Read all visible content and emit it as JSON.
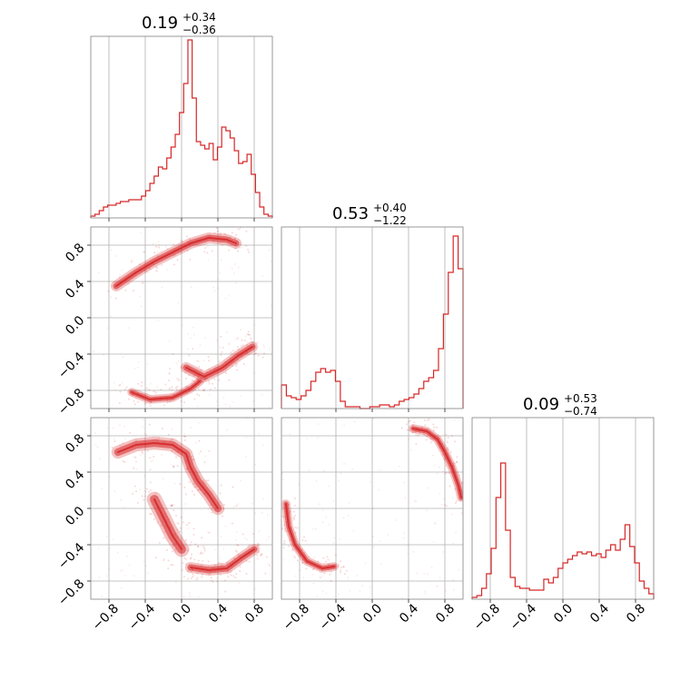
{
  "chart_data": {
    "type": "corner",
    "color": "#d62728",
    "grid": true,
    "x_ticks": [
      "−0.8",
      "−0.4",
      "0.0",
      "0.4",
      "0.8"
    ],
    "y_ticks": [
      "0.8",
      "0.4",
      "0.0",
      "−0.4",
      "−0.8"
    ],
    "tick_values": [
      -0.8,
      -0.4,
      0.0,
      0.4,
      0.8
    ],
    "range": [
      -1.0,
      1.0
    ],
    "parameters": [
      {
        "median": "0.19",
        "plus": "+0.34",
        "minus": "−0.36"
      },
      {
        "median": "0.53",
        "plus": "+0.40",
        "minus": "−1.22"
      },
      {
        "median": "0.09",
        "plus": "+0.53",
        "minus": "−0.74"
      }
    ],
    "histograms": [
      [
        0.01,
        0.02,
        0.04,
        0.06,
        0.07,
        0.07,
        0.08,
        0.09,
        0.09,
        0.1,
        0.1,
        0.1,
        0.12,
        0.15,
        0.19,
        0.23,
        0.28,
        0.27,
        0.33,
        0.39,
        0.46,
        0.58,
        0.74,
        0.98,
        0.66,
        0.42,
        0.4,
        0.38,
        0.41,
        0.32,
        0.39,
        0.5,
        0.48,
        0.44,
        0.37,
        0.3,
        0.31,
        0.35,
        0.24,
        0.14,
        0.06,
        0.02,
        0.01
      ],
      [
        0.13,
        0.07,
        0.06,
        0.05,
        0.07,
        0.1,
        0.15,
        0.2,
        0.22,
        0.2,
        0.21,
        0.15,
        0.04,
        0.01,
        0.01,
        0.01,
        0.0,
        0.0,
        0.01,
        0.01,
        0.02,
        0.02,
        0.01,
        0.02,
        0.04,
        0.05,
        0.06,
        0.08,
        0.11,
        0.15,
        0.17,
        0.21,
        0.33,
        0.52,
        0.75,
        0.95,
        0.77
      ],
      [
        0.01,
        0.02,
        0.06,
        0.14,
        0.28,
        0.56,
        0.75,
        0.38,
        0.12,
        0.07,
        0.06,
        0.06,
        0.05,
        0.05,
        0.05,
        0.11,
        0.09,
        0.12,
        0.17,
        0.2,
        0.22,
        0.24,
        0.26,
        0.25,
        0.26,
        0.24,
        0.25,
        0.23,
        0.27,
        0.3,
        0.27,
        0.33,
        0.41,
        0.29,
        0.2,
        0.1,
        0.06,
        0.03
      ]
    ]
  }
}
